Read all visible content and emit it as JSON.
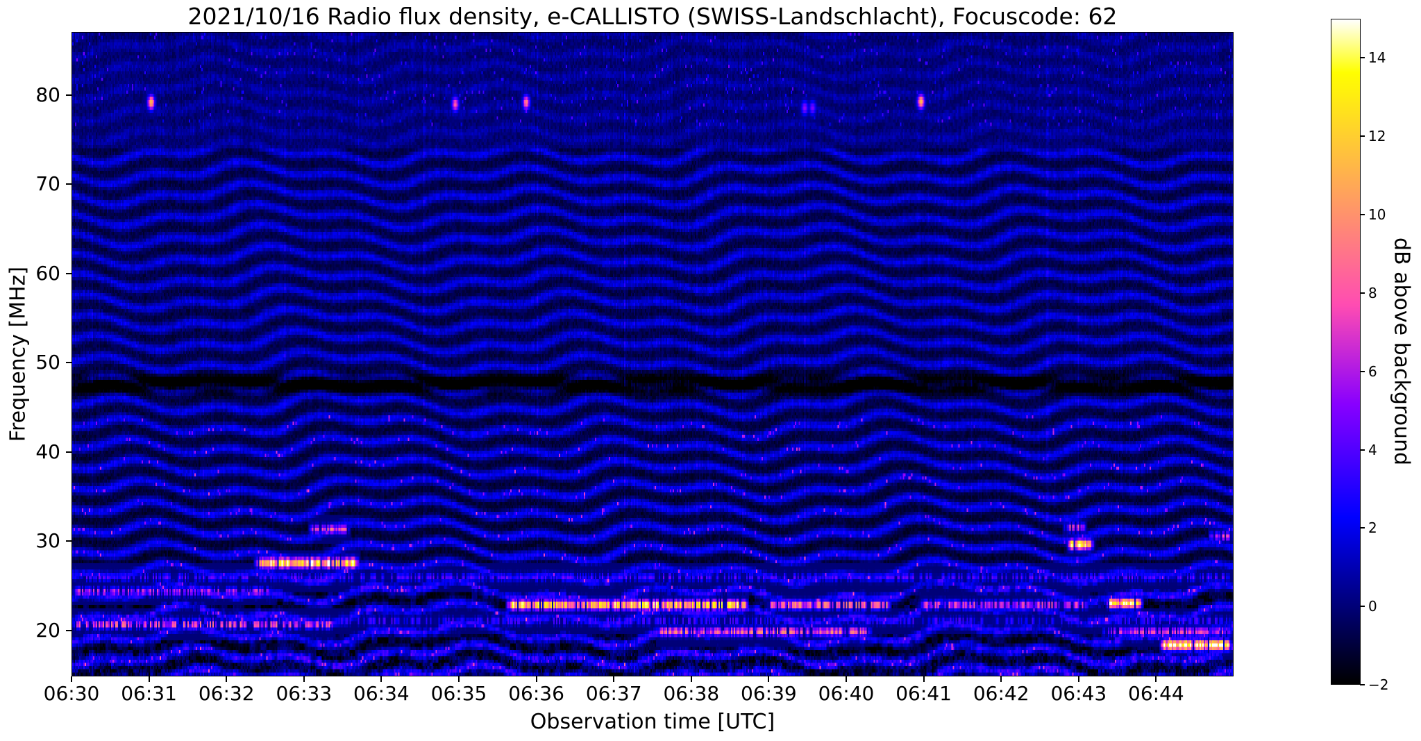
{
  "figure": {
    "background_color": "#ffffff",
    "text_color": "#000000"
  },
  "chart_data": {
    "type": "heatmap",
    "subtype": "radio-spectrogram",
    "title": "2021/10/16  Radio flux density, e-CALLISTO (SWISS-Landschlacht), Focuscode: 62",
    "xlabel": "Observation time [UTC]",
    "ylabel": "Frequency [MHz]",
    "colorbar_label": "dB above background",
    "colormap": "gnuplot2",
    "colormap_sequence": [
      "black",
      "navy",
      "blue",
      "violet",
      "magenta",
      "pink",
      "orange",
      "yellow",
      "white"
    ],
    "x_tick_labels": [
      "06:30",
      "06:31",
      "06:32",
      "06:33",
      "06:34",
      "06:35",
      "06:36",
      "06:37",
      "06:38",
      "06:39",
      "06:40",
      "06:41",
      "06:42",
      "06:43",
      "06:44"
    ],
    "x_start_utc": "06:30",
    "x_end_utc": "06:45",
    "time_range_min": [
      0,
      15
    ],
    "y_tick_values_mhz": [
      20,
      30,
      40,
      50,
      60,
      70,
      80
    ],
    "freq_range_mhz": [
      14.85,
      87.05
    ],
    "colorbar_tick_values_db": [
      14,
      12,
      10,
      8,
      6,
      4,
      2,
      0,
      -2
    ],
    "value_range_db": [
      -2,
      15
    ],
    "background": {
      "noise_floor_db": 0.25,
      "fringe_spacing_mhz": 2.35,
      "fringe_peak_db": 2.6,
      "fringe_wave_periods_min": [
        3.4,
        1.23,
        7.6
      ],
      "fringe_fade_above_mhz": 74,
      "low_freq_chaos_below_mhz": 26,
      "dark_band_mhz": 47.6,
      "dark_band_depth_db": 3.2
    },
    "rfi_lines": [
      {
        "freq_mhz": 24.3,
        "t_start_min": 0.0,
        "t_end_min": 2.6,
        "peak_db": 7.0,
        "dropout": 0.3
      },
      {
        "freq_mhz": 20.6,
        "t_start_min": 0.0,
        "t_end_min": 3.4,
        "peak_db": 9.5,
        "dropout": 0.5
      },
      {
        "freq_mhz": 27.5,
        "t_start_min": 2.35,
        "t_end_min": 3.72,
        "peak_db": 16.0,
        "sigma_mhz": 0.4,
        "dropout": 0.1
      },
      {
        "freq_mhz": 31.3,
        "t_start_min": 3.05,
        "t_end_min": 3.6,
        "peak_db": 9.0,
        "dropout": 0.25
      },
      {
        "freq_mhz": 22.8,
        "t_start_min": 5.6,
        "t_end_min": 8.75,
        "peak_db": 14.5,
        "sigma_mhz": 0.38,
        "dropout": 0.12
      },
      {
        "freq_mhz": 22.8,
        "t_start_min": 8.95,
        "t_end_min": 10.6,
        "peak_db": 10.5,
        "dropout": 0.2
      },
      {
        "freq_mhz": 22.8,
        "t_start_min": 10.95,
        "t_end_min": 13.15,
        "peak_db": 8.5,
        "dropout": 0.3
      },
      {
        "freq_mhz": 23.0,
        "t_start_min": 13.35,
        "t_end_min": 13.85,
        "peak_db": 15.0,
        "sigma_mhz": 0.38,
        "dropout": 0.08
      },
      {
        "freq_mhz": 19.8,
        "t_start_min": 7.55,
        "t_end_min": 10.35,
        "peak_db": 9.5,
        "dropout": 0.18
      },
      {
        "freq_mhz": 19.8,
        "t_start_min": 13.3,
        "t_end_min": 15.0,
        "peak_db": 7.5,
        "dropout": 0.3
      },
      {
        "freq_mhz": 18.3,
        "t_start_min": 14.05,
        "t_end_min": 15.0,
        "peak_db": 16.0,
        "sigma_mhz": 0.4,
        "dropout": 0.08
      },
      {
        "freq_mhz": 29.6,
        "t_start_min": 12.85,
        "t_end_min": 13.22,
        "peak_db": 16.0,
        "sigma_mhz": 0.4,
        "dropout": 0.05
      },
      {
        "freq_mhz": 31.5,
        "t_start_min": 12.8,
        "t_end_min": 13.12,
        "peak_db": 8.0,
        "dropout": 0.25
      },
      {
        "freq_mhz": 30.5,
        "t_start_min": 14.68,
        "t_end_min": 15.0,
        "peak_db": 9.0,
        "dropout": 0.2
      },
      {
        "freq_mhz": 25.9,
        "t_start_min": 0.0,
        "t_end_min": 15.0,
        "peak_db": 4.5,
        "dropout": 0.5
      },
      {
        "freq_mhz": 21.0,
        "t_start_min": 0.0,
        "t_end_min": 15.0,
        "peak_db": 4.2,
        "dropout": 0.55
      }
    ],
    "point_bursts_79mhz": [
      {
        "t_min": 1.02,
        "freq_mhz": 79.2,
        "peak_db": 11.5
      },
      {
        "t_min": 4.95,
        "freq_mhz": 79.0,
        "peak_db": 8.5
      },
      {
        "t_min": 5.87,
        "freq_mhz": 79.2,
        "peak_db": 9.5
      },
      {
        "t_min": 9.47,
        "freq_mhz": 78.6,
        "peak_db": 5.5
      },
      {
        "t_min": 9.57,
        "freq_mhz": 78.6,
        "peak_db": 5.0
      },
      {
        "t_min": 10.97,
        "freq_mhz": 79.3,
        "peak_db": 11.5
      }
    ]
  }
}
